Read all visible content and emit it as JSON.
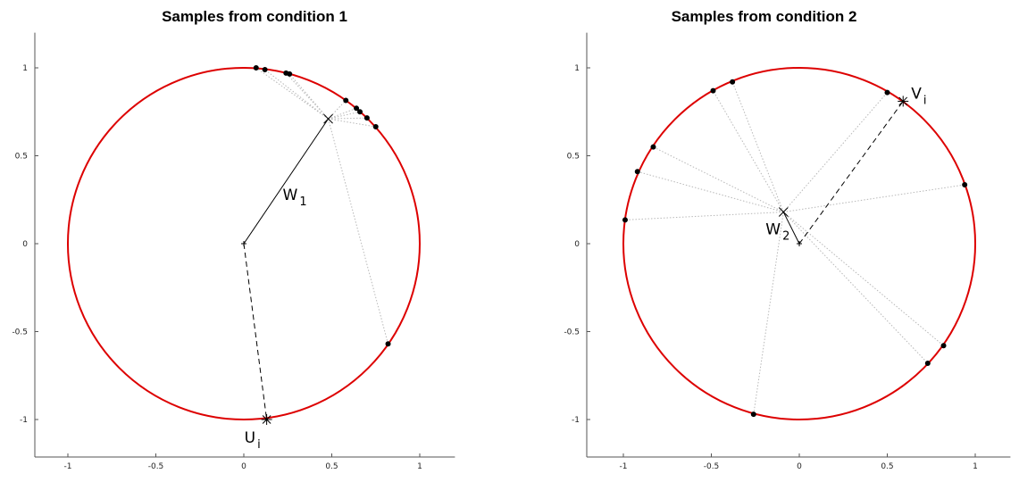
{
  "chart_data": [
    {
      "type": "scatter",
      "title": "Samples from condition 1",
      "xlim": [
        -1.2,
        1.2
      ],
      "ylim": [
        -1.2,
        1.2
      ],
      "xticks": [
        -1,
        -0.5,
        0,
        0.5,
        1
      ],
      "yticks": [
        -1,
        -0.5,
        0,
        0.5,
        1
      ],
      "xtick_labels": [
        "-1",
        "-0.5",
        "0",
        "0.5",
        "1"
      ],
      "ytick_labels": [
        "-1",
        "-0.5",
        "0",
        "0.5",
        "1"
      ],
      "grid": false,
      "circle": {
        "center": [
          0,
          0
        ],
        "radius": 1,
        "color": "#dd0000"
      },
      "samples": [
        {
          "x": 0.07,
          "y": 1.0
        },
        {
          "x": 0.12,
          "y": 0.99
        },
        {
          "x": 0.24,
          "y": 0.97
        },
        {
          "x": 0.26,
          "y": 0.965
        },
        {
          "x": 0.58,
          "y": 0.815
        },
        {
          "x": 0.64,
          "y": 0.77
        },
        {
          "x": 0.66,
          "y": 0.75
        },
        {
          "x": 0.7,
          "y": 0.715
        },
        {
          "x": 0.75,
          "y": 0.665
        },
        {
          "x": 0.82,
          "y": -0.57
        }
      ],
      "mean_vector": {
        "x": 0.48,
        "y": 0.71,
        "label_main": "W",
        "label_sub": "1"
      },
      "reference": {
        "x": 0.13,
        "y": -1.0,
        "label_main": "U",
        "label_sub": "i"
      }
    },
    {
      "type": "scatter",
      "title": "Samples from condition 2",
      "xlim": [
        -1.2,
        1.2
      ],
      "ylim": [
        -1.2,
        1.2
      ],
      "xticks": [
        -1,
        -0.5,
        0,
        0.5,
        1
      ],
      "yticks": [
        -1,
        -0.5,
        0,
        0.5,
        1
      ],
      "xtick_labels": [
        "-1",
        "-0.5",
        "0",
        "0.5",
        "1"
      ],
      "ytick_labels": [
        "-1",
        "-0.5",
        "0",
        "0.5",
        "1"
      ],
      "grid": false,
      "circle": {
        "center": [
          0,
          0
        ],
        "radius": 1,
        "color": "#dd0000"
      },
      "samples": [
        {
          "x": -0.99,
          "y": 0.135
        },
        {
          "x": -0.92,
          "y": 0.41
        },
        {
          "x": -0.83,
          "y": 0.55
        },
        {
          "x": -0.49,
          "y": 0.87
        },
        {
          "x": -0.38,
          "y": 0.92
        },
        {
          "x": 0.5,
          "y": 0.86
        },
        {
          "x": 0.94,
          "y": 0.335
        },
        {
          "x": 0.82,
          "y": -0.58
        },
        {
          "x": 0.73,
          "y": -0.68
        },
        {
          "x": -0.26,
          "y": -0.97
        }
      ],
      "mean_vector": {
        "x": -0.09,
        "y": 0.18,
        "label_main": "W",
        "label_sub": "2"
      },
      "reference": {
        "x": 0.59,
        "y": 0.81,
        "label_main": "V",
        "label_sub": "i"
      }
    }
  ],
  "style": {
    "circle_color": "#dd0000",
    "point_color": "#000000",
    "guide_color": "#b8b8b8",
    "axis_color": "#555555"
  }
}
